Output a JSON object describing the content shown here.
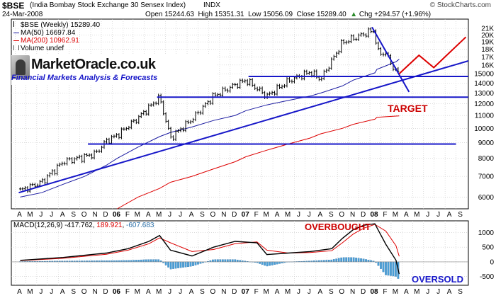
{
  "header": {
    "symbol": "$BSE",
    "description": "(India Bombay Stock Exchange 30 Sensex Index)",
    "exchange": "INDX",
    "brand": "© StockCharts.com",
    "date": "24-Mar-2008",
    "open_label": "Open",
    "open_value": "15244.63",
    "high_label": "High",
    "high_value": "15351.31",
    "low_label": "Low",
    "low_value": "15056.09",
    "close_label": "Close",
    "close_value": "15289.40",
    "chg_label": "Chg",
    "chg_value": "+294.57 (+1.96%)",
    "chg_icon": "up-triangle-icon"
  },
  "legend": {
    "price": "$BSE (Weekly) 15289.40",
    "ma50": "MA(50) 16697.84",
    "ma200": "MA(200) 10962.91",
    "volume": "Volume undef"
  },
  "logo": {
    "title": "MarketOracle.co.uk",
    "tagline": "Financial Markets Analysis & Forecasts"
  },
  "macd_legend": {
    "label": "MACD(12,26,9)",
    "macd": "-417.762",
    "signal": "189.921",
    "hist": "-607.683"
  },
  "annotations": {
    "target": "TARGET",
    "overbought": "OVERBOUGHT",
    "oversold": "OVERSOLD"
  },
  "colors": {
    "price_bar": "#000000",
    "ma50": "#1a1aa0",
    "ma200": "#dd0000",
    "trendline": "#1616c8",
    "projection": "#dd0000",
    "annotation": "#cc0000",
    "histogram": "#4aa0d8",
    "histogram_edge": "#2a6fa8",
    "grid": "#c8c8c8"
  },
  "chart_data": [
    {
      "type": "line",
      "panel": "price",
      "scale": "log",
      "ylim": [
        5500,
        22500
      ],
      "y_ticks": [
        6000,
        7000,
        8000,
        9000,
        10000,
        11000,
        12000,
        13000,
        14000,
        15000,
        16000,
        17000,
        18000,
        19000,
        20000,
        21000
      ],
      "y_tick_labels": [
        "6000",
        "7000",
        "8000",
        "9000",
        "10000",
        "11000",
        "12000",
        "13000",
        "14000",
        "15000",
        "16K",
        "17K",
        "18K",
        "19K",
        "20K",
        "21K"
      ],
      "x_range": [
        "2005-03-21",
        "2008-10-06"
      ],
      "month_labels": [
        "A",
        "M",
        "J",
        "J",
        "A",
        "S",
        "O",
        "N",
        "D",
        "06",
        "F",
        "M",
        "A",
        "M",
        "J",
        "J",
        "A",
        "S",
        "O",
        "N",
        "D",
        "07",
        "F",
        "M",
        "A",
        "M",
        "J",
        "J",
        "A",
        "S",
        "O",
        "N",
        "D",
        "08",
        "F",
        "M",
        "A",
        "M",
        "J",
        "J",
        "A",
        "S"
      ],
      "x": [
        "2005-04",
        "2005-06",
        "2005-08",
        "2005-10",
        "2005-11",
        "2005-12",
        "2006-01",
        "2006-03",
        "2006-05",
        "2006-06",
        "2006-08",
        "2006-10",
        "2006-12",
        "2007-01",
        "2007-03",
        "2007-05",
        "2007-07",
        "2007-08",
        "2007-10",
        "2007-11",
        "2008-01",
        "2008-01-21",
        "2008-02",
        "2008-03",
        "2008-03-24"
      ],
      "series": [
        {
          "name": "$BSE (Weekly)",
          "values": [
            6300,
            6700,
            7800,
            8100,
            8300,
            9100,
            9500,
            10800,
            12600,
            9300,
            10700,
            12700,
            13800,
            14300,
            12700,
            14200,
            15200,
            14400,
            18900,
            19500,
            20800,
            17600,
            17400,
            15200,
            15289
          ]
        },
        {
          "name": "MA(50)",
          "values": [
            6000,
            6200,
            6600,
            7000,
            7300,
            7600,
            8000,
            8700,
            9400,
            9700,
            10100,
            10600,
            11000,
            11400,
            11900,
            12300,
            12700,
            13000,
            13700,
            14300,
            15100,
            15500,
            15900,
            16400,
            16698
          ]
        },
        {
          "name": "MA(200)",
          "values": [
            null,
            null,
            null,
            null,
            null,
            null,
            5500,
            6000,
            6400,
            6700,
            7000,
            7400,
            7800,
            8100,
            8500,
            8900,
            9300,
            9600,
            10000,
            10300,
            10700,
            10850,
            10900,
            10950,
            10963
          ]
        }
      ],
      "horizontal_lines": [
        {
          "value": 14700,
          "from": "2007-01-22",
          "to": "2008-10-06"
        },
        {
          "value": 12600,
          "from": "2006-05-08",
          "to": "2008-10-06"
        },
        {
          "value": 8900,
          "from": "2005-10-24",
          "to": "2008-09-01"
        }
      ],
      "trendlines": [
        {
          "from": [
            "2005-04-11",
            6200
          ],
          "to": [
            "2008-10-06",
            16500
          ]
        },
        {
          "from": [
            "2008-01-07",
            21200
          ],
          "to": [
            "2008-04-21",
            13100
          ]
        }
      ],
      "projection": {
        "x": [
          "2008-03-24",
          "2008-05-19",
          "2008-06-30",
          "2008-09-29"
        ],
        "values": [
          15000,
          17200,
          15700,
          19700
        ]
      }
    },
    {
      "type": "line",
      "panel": "macd",
      "ylim": [
        -800,
        1400
      ],
      "y_ticks": [
        -500,
        0,
        500,
        1000
      ],
      "x": [
        "2005-04",
        "2005-08",
        "2005-12",
        "2006-02",
        "2006-04",
        "2006-05",
        "2006-06",
        "2006-08",
        "2006-10",
        "2006-12",
        "2007-02",
        "2007-03",
        "2007-05",
        "2007-07",
        "2007-09",
        "2007-10",
        "2007-11",
        "2007-12",
        "2008-01",
        "2008-02",
        "2008-03",
        "2008-03-24"
      ],
      "series": [
        {
          "name": "MACD",
          "values": [
            50,
            150,
            300,
            450,
            700,
            900,
            400,
            200,
            500,
            700,
            650,
            250,
            300,
            350,
            450,
            800,
            1100,
            1250,
            1300,
            600,
            50,
            -418
          ]
        },
        {
          "name": "Signal",
          "values": [
            40,
            120,
            260,
            400,
            620,
            820,
            650,
            350,
            420,
            620,
            680,
            400,
            300,
            320,
            380,
            650,
            950,
            1150,
            1280,
            1050,
            550,
            190
          ]
        },
        {
          "name": "Histogram",
          "values": [
            10,
            30,
            40,
            50,
            80,
            80,
            -250,
            -150,
            80,
            80,
            -30,
            -150,
            0,
            30,
            70,
            150,
            150,
            100,
            20,
            -450,
            -500,
            -608
          ]
        }
      ]
    }
  ]
}
